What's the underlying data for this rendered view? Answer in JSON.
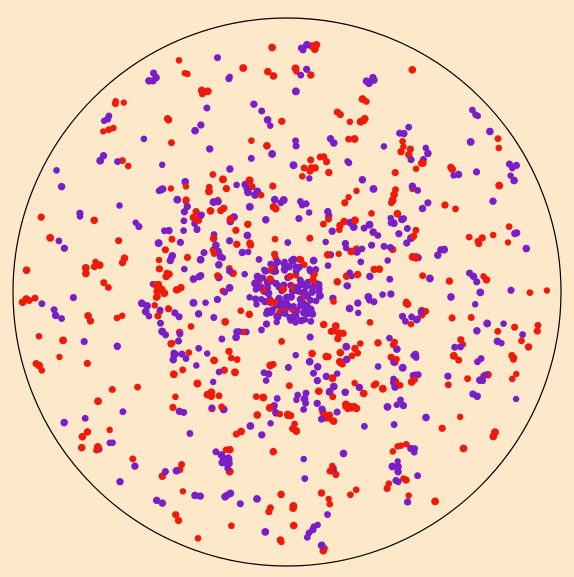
{
  "colors": {
    "background": "#fde9c9",
    "boundary": "#000000",
    "red_particle": "#f01a0a",
    "purple_particle": "#7a1fc7"
  },
  "simulation": {
    "particle_types": [
      "red-particle",
      "purple-particle"
    ],
    "boundary_shape": "circle"
  }
}
